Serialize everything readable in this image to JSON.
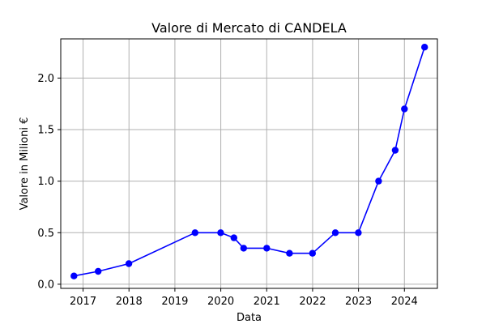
{
  "chart_data": {
    "type": "line",
    "title": "Valore di Mercato di CANDELA",
    "xlabel": "Data",
    "ylabel": "Valore in Milioni €",
    "grid": true,
    "series_color": "#0000ff",
    "grid_color": "#b0b0b0",
    "x_ticks": [
      "2017",
      "2018",
      "2019",
      "2020",
      "2021",
      "2022",
      "2023",
      "2024"
    ],
    "y_ticks": [
      "0.0",
      "0.5",
      "1.0",
      "1.5",
      "2.0"
    ],
    "xlim": [
      "2016-07-07",
      "2024-09-20"
    ],
    "ylim": [
      -0.04,
      2.38
    ],
    "series": [
      {
        "x": [
          "2016-10-20",
          "2017-05-01",
          "2017-12-31",
          "2019-06-10",
          "2019-12-31",
          "2020-04-15",
          "2020-07-01",
          "2021-01-01",
          "2021-07-01",
          "2021-12-31",
          "2022-07-01",
          "2022-12-31",
          "2023-06-10",
          "2023-10-20",
          "2024-01-01",
          "2024-06-10"
        ],
        "y": [
          0.08,
          0.125,
          0.2,
          0.5,
          0.5,
          0.45,
          0.35,
          0.35,
          0.3,
          0.3,
          0.5,
          0.5,
          1.0,
          1.3,
          1.7,
          2.3
        ]
      }
    ]
  }
}
